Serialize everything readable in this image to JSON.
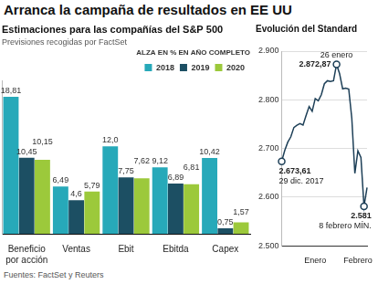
{
  "title": "Arranca la campaña de resultados en EE UU",
  "source": "Fuentes: FactSet y Reuters",
  "chart_data": [
    {
      "type": "bar",
      "title": "Estimaciones para las compañías del S&P 500",
      "subtitle": "Previsiones recogidas por FactSet",
      "legend_title": "ALZA EN % EN AÑO COMPLETO",
      "categories": [
        "Beneficio por acción",
        "Ventas",
        "Ebit",
        "Ebitda",
        "Capex"
      ],
      "series": [
        {
          "name": "2018",
          "color": "#27a9b9",
          "values": [
            18.81,
            6.49,
            12.0,
            9.12,
            10.42
          ],
          "value_labels": [
            "18,81",
            "6,49",
            "12,0",
            "9,12",
            "10,42"
          ]
        },
        {
          "name": "2019",
          "color": "#1c4f63",
          "values": [
            10.45,
            4.6,
            7.75,
            6.89,
            0.75
          ],
          "value_labels": [
            "10,45",
            "4,6",
            "7,75",
            "6,89",
            "0,75"
          ]
        },
        {
          "name": "2020",
          "color": "#9cc93b",
          "values": [
            10.15,
            5.79,
            7.62,
            6.81,
            1.57
          ],
          "value_labels": [
            "10,15",
            "5,79",
            "7,62",
            "6,81",
            "1,57"
          ]
        }
      ],
      "ylim": [
        0,
        21
      ],
      "tick_labels": "x",
      "grid": false,
      "legend": "top",
      "data_labels": true
    },
    {
      "type": "line",
      "title": "Evolución del Standard",
      "categories": [
        null,
        null,
        null,
        null,
        null,
        null,
        null,
        null,
        null,
        null,
        null,
        "Enero",
        null,
        null,
        null,
        null,
        null,
        null,
        null,
        null,
        null,
        null,
        null,
        null,
        null,
        "Febrero",
        null,
        null,
        null
      ],
      "values": [
        2673.61,
        2695.81,
        2713.06,
        2723.99,
        2743.15,
        2747.71,
        2751.29,
        2748.23,
        2767.56,
        2786.24,
        2776.42,
        2802.56,
        2798.03,
        2810.3,
        2832.97,
        2839.13,
        2837.54,
        2839.25,
        2872.87,
        2853.53,
        2822.43,
        2823.81,
        2821.98,
        2762.13,
        2648.94,
        2695.14,
        2681.66,
        2581,
        2619.55
      ],
      "color": "#1d3f57",
      "ylim": [
        2500,
        2900
      ],
      "yticks": [
        {
          "value": 2500,
          "label": "2.500"
        },
        {
          "value": 2600,
          "label": "2.600"
        },
        {
          "value": 2700,
          "label": "2.700"
        },
        {
          "value": 2800,
          "label": "2.800"
        },
        {
          "value": 2900,
          "label": "2.900"
        }
      ],
      "grid": true,
      "annotations": [
        {
          "value": 2673.61,
          "text": [
            "2.673,61",
            "29 dic. 2017"
          ]
        },
        {
          "value": 2872.87,
          "text": [
            "26 enero",
            "2.872,87"
          ]
        },
        {
          "value": 2581,
          "text": [
            "2.581",
            "8 febrero MÍN."
          ]
        }
      ]
    }
  ]
}
